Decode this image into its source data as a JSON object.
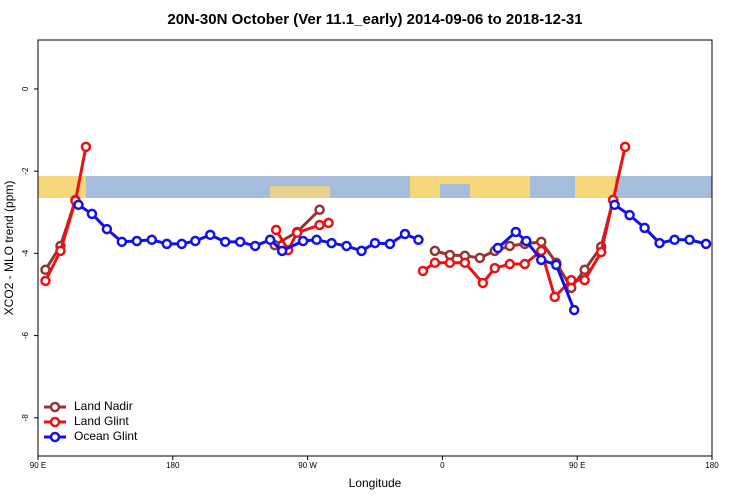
{
  "chart_data": {
    "type": "line",
    "title": "20N-30N October (Ver 11.1_early)   2014-09-06 to 2018-12-31",
    "x_label": "Longitude",
    "y_label": "XCO2 - MLO trend (ppm)",
    "xlim": [
      90,
      540
    ],
    "xticks": [
      {
        "value": 90,
        "label": "90 E"
      },
      {
        "value": 180,
        "label": "180"
      },
      {
        "value": 270,
        "label": "90 W"
      },
      {
        "value": 360,
        "label": "0"
      },
      {
        "value": 450,
        "label": "90 E"
      },
      {
        "value": 540,
        "label": "180"
      }
    ],
    "ylim": [
      -8.93,
      1.19
    ],
    "yticks": [
      0,
      -2,
      -4,
      -6,
      -8
    ],
    "legend": "bottom-left",
    "series": [
      {
        "name": "Land Nadir",
        "color": "#993333",
        "x": [
          95,
          105,
          115,
          null,
          248,
          263,
          278,
          null,
          355,
          365,
          375,
          385,
          395,
          405,
          415,
          426,
          436,
          446,
          455,
          466,
          474
        ],
        "values": [
          -4.4,
          -3.82,
          -2.7,
          null,
          -3.8,
          -3.48,
          -2.94,
          null,
          -3.94,
          -4.04,
          -4.06,
          -4.11,
          -3.94,
          -3.82,
          -3.77,
          -3.72,
          -4.23,
          -4.84,
          -4.4,
          -3.84,
          -2.7
        ]
      },
      {
        "name": "Land Glint",
        "color": "#ee1111",
        "x": [
          95,
          105,
          115,
          122,
          null,
          249,
          257,
          263,
          278,
          284,
          null,
          347,
          355,
          365,
          375,
          387,
          395,
          405,
          415,
          426,
          435,
          446,
          455,
          466,
          474,
          482
        ],
        "values": [
          -4.67,
          -3.94,
          -2.72,
          -1.41,
          null,
          -3.43,
          -3.92,
          -3.5,
          -3.31,
          -3.26,
          null,
          -4.43,
          -4.23,
          -4.23,
          -4.23,
          -4.72,
          -4.36,
          -4.26,
          -4.26,
          -3.94,
          -5.06,
          -4.65,
          -4.65,
          -3.97,
          -2.7,
          -1.41
        ]
      },
      {
        "name": "Ocean Glint",
        "color": "#1111ee",
        "x": [
          117,
          126,
          136,
          146,
          156,
          166,
          176,
          186,
          195,
          205,
          215,
          225,
          235,
          245,
          253,
          267,
          276,
          286,
          296,
          306,
          315,
          325,
          335,
          344,
          null,
          397,
          409,
          416,
          426,
          436,
          448,
          null,
          475,
          485,
          495,
          505,
          515,
          525,
          536
        ],
        "values": [
          -2.82,
          -3.04,
          -3.41,
          -3.72,
          -3.7,
          -3.67,
          -3.77,
          -3.77,
          -3.7,
          -3.55,
          -3.72,
          -3.72,
          -3.82,
          -3.67,
          -3.94,
          -3.7,
          -3.67,
          -3.75,
          -3.82,
          -3.94,
          -3.75,
          -3.77,
          -3.53,
          -3.67,
          null,
          -3.87,
          -3.48,
          -3.7,
          -4.16,
          -4.28,
          -5.38,
          null,
          -2.82,
          -3.07,
          -3.38,
          -3.75,
          -3.67,
          -3.67,
          -3.77
        ]
      }
    ]
  }
}
